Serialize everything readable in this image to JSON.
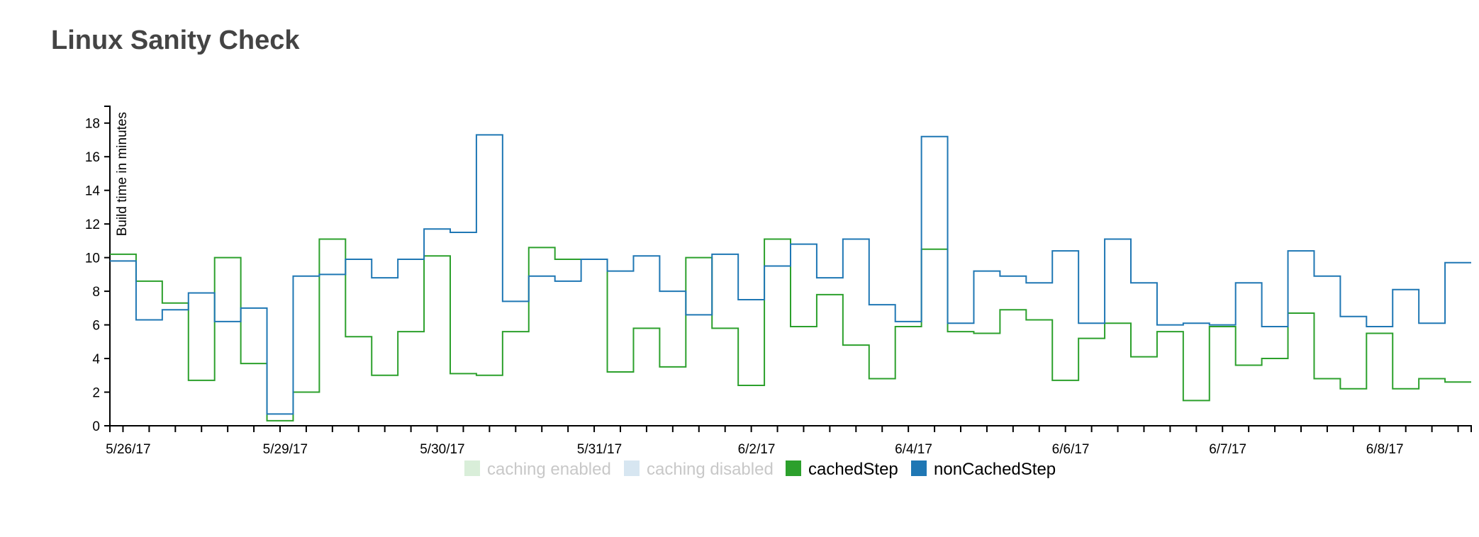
{
  "page": {
    "title": "Linux Sanity Check"
  },
  "chart_data": {
    "type": "line",
    "step": true,
    "title": "Linux Sanity Check",
    "xlabel": "",
    "ylabel": "Build time in minutes",
    "ylim": [
      0,
      19
    ],
    "yticks": [
      0,
      2,
      4,
      6,
      8,
      10,
      12,
      14,
      16,
      18
    ],
    "x": [
      0,
      1,
      2,
      3,
      4,
      5,
      6,
      7,
      8,
      9,
      10,
      11,
      12,
      13,
      14,
      15,
      16,
      17,
      18,
      19,
      20,
      21,
      22,
      23,
      24,
      25,
      26,
      27,
      28,
      29,
      30,
      31,
      32,
      33,
      34,
      35,
      36,
      37,
      38,
      39,
      40,
      41,
      42,
      43,
      44,
      45,
      46,
      47,
      48,
      49,
      50,
      51
    ],
    "xlim": [
      0,
      51
    ],
    "xtick_positions": [
      1,
      7,
      13,
      19,
      25,
      31,
      37,
      43,
      49
    ],
    "xtick_labels": [
      "5/26/17",
      "5/29/17",
      "5/30/17",
      "5/31/17",
      "6/2/17",
      "6/4/17",
      "6/6/17",
      "6/7/17",
      "6/8/17"
    ],
    "series": [
      {
        "name": "cachedStep",
        "color": "#2ca02c",
        "values": [
          10.2,
          8.6,
          7.3,
          2.7,
          10.0,
          3.7,
          0.3,
          2.0,
          11.1,
          5.3,
          3.0,
          5.6,
          10.1,
          3.1,
          3.0,
          5.6,
          10.6,
          9.9,
          9.9,
          3.2,
          5.8,
          3.5,
          10.0,
          5.8,
          2.4,
          11.1,
          5.9,
          7.8,
          4.8,
          2.8,
          5.9,
          10.5,
          5.6,
          5.5,
          6.9,
          6.3,
          2.7,
          5.2,
          6.1,
          4.1,
          5.6,
          1.5,
          5.9,
          3.6,
          4.0,
          6.7,
          2.8,
          2.2,
          5.5,
          2.2,
          2.8,
          2.6
        ]
      },
      {
        "name": "nonCachedStep",
        "color": "#1f77b4",
        "values": [
          9.8,
          6.3,
          6.9,
          7.9,
          6.2,
          7.0,
          0.7,
          8.9,
          9.0,
          9.9,
          8.8,
          9.9,
          11.7,
          11.5,
          17.3,
          7.4,
          8.9,
          8.6,
          9.9,
          9.2,
          10.1,
          8.0,
          6.6,
          10.2,
          7.5,
          9.5,
          10.8,
          8.8,
          11.1,
          7.2,
          6.2,
          17.2,
          6.1,
          9.2,
          8.9,
          8.5,
          10.4,
          6.1,
          11.1,
          8.5,
          6.0,
          6.1,
          6.0,
          8.5,
          5.9,
          10.4,
          8.9,
          6.5,
          5.9,
          8.1,
          6.1,
          9.7
        ]
      }
    ],
    "legend": [
      {
        "label": "caching enabled",
        "color": "#2ca02c",
        "active": false
      },
      {
        "label": "caching disabled",
        "color": "#1f77b4",
        "active": false
      },
      {
        "label": "cachedStep",
        "color": "#2ca02c",
        "active": true
      },
      {
        "label": "nonCachedStep",
        "color": "#1f77b4",
        "active": true
      }
    ],
    "legend_position": "bottom-center",
    "grid": false
  }
}
